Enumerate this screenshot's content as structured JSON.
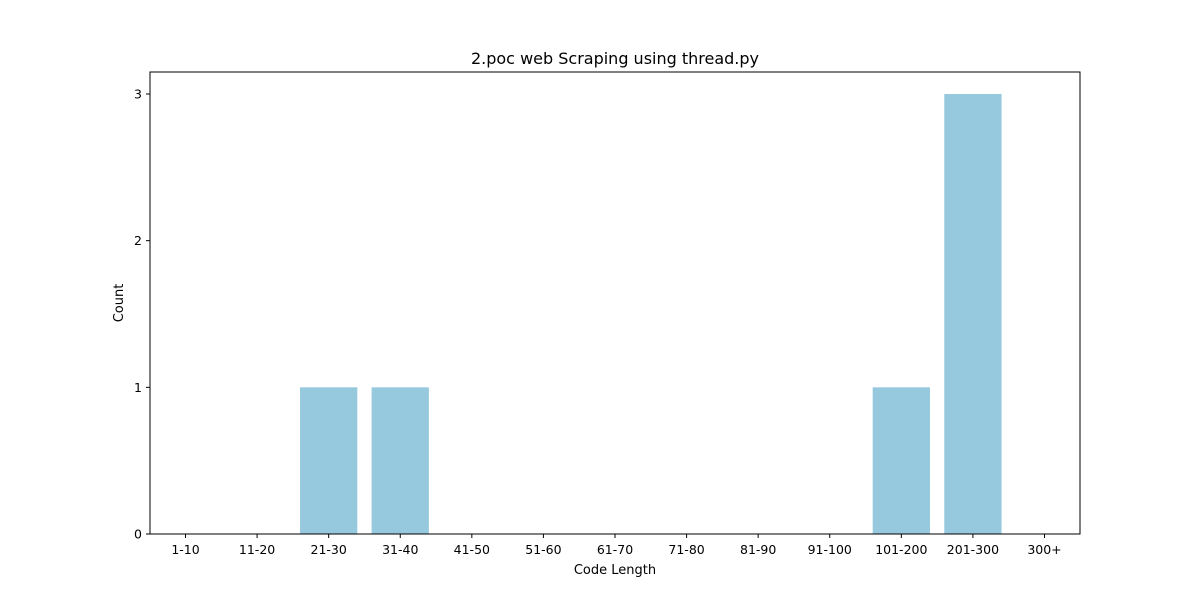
{
  "chart_data": {
    "type": "bar",
    "title": "2.poc web Scraping using thread.py",
    "xlabel": "Code Length",
    "ylabel": "Count",
    "categories": [
      "1-10",
      "11-20",
      "21-30",
      "31-40",
      "41-50",
      "51-60",
      "61-70",
      "71-80",
      "81-90",
      "91-100",
      "101-200",
      "201-300",
      "300+"
    ],
    "values": [
      0,
      0,
      1,
      1,
      0,
      0,
      0,
      0,
      0,
      0,
      1,
      3,
      0
    ],
    "ylim": [
      0,
      3.15
    ],
    "yticks": [
      0,
      1,
      2,
      3
    ],
    "grid": false,
    "bar_color": "#96c9de"
  }
}
